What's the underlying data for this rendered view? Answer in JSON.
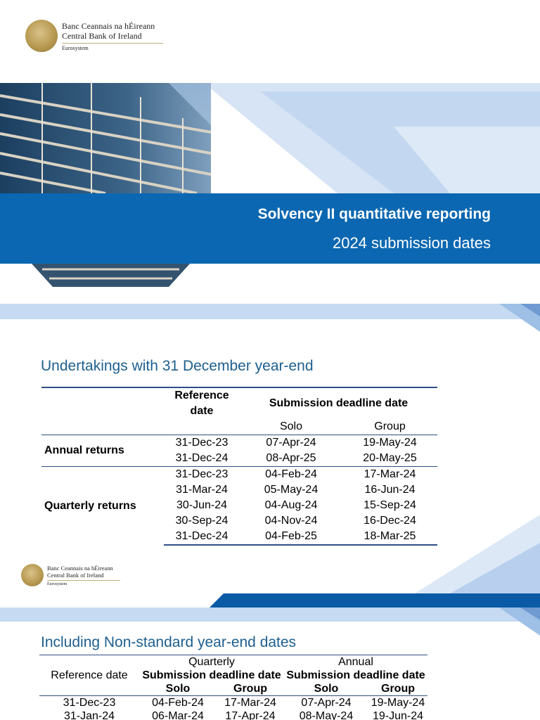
{
  "branding": {
    "name_irish": "Banc Ceannais na hÉireann",
    "name_english": "Central Bank of Ireland",
    "eurosystem": "Eurosystem"
  },
  "title_slide": {
    "title": "Solvency II quantitative reporting",
    "subtitle": "2024 submission dates"
  },
  "standard_section": {
    "heading": "Undertakings with 31 December year-end",
    "col_reference": "Reference date",
    "col_deadline": "Submission deadline date",
    "col_solo": "Solo",
    "col_group": "Group",
    "annual_label": "Annual returns",
    "quarterly_label": "Quarterly returns",
    "annual_rows": [
      {
        "ref": "31-Dec-23",
        "solo": "07-Apr-24",
        "group": "19-May-24"
      },
      {
        "ref": "31-Dec-24",
        "solo": "08-Apr-25",
        "group": "20-May-25"
      }
    ],
    "quarterly_rows": [
      {
        "ref": "31-Dec-23",
        "solo": "04-Feb-24",
        "group": "17-Mar-24"
      },
      {
        "ref": "31-Mar-24",
        "solo": "05-May-24",
        "group": "16-Jun-24"
      },
      {
        "ref": "30-Jun-24",
        "solo": "04-Aug-24",
        "group": "15-Sep-24"
      },
      {
        "ref": "30-Sep-24",
        "solo": "04-Nov-24",
        "group": "16-Dec-24"
      },
      {
        "ref": "31-Dec-24",
        "solo": "04-Feb-25",
        "group": "18-Mar-25"
      }
    ]
  },
  "nonstandard_section": {
    "heading": "Including Non-standard year-end dates",
    "col_reference": "Reference date",
    "quarterly": "Quarterly",
    "annual": "Annual",
    "deadline": "Submission deadline date",
    "solo": "Solo",
    "group": "Group",
    "rows": [
      {
        "ref": "31-Dec-23",
        "q_solo": "04-Feb-24",
        "q_group": "17-Mar-24",
        "a_solo": "07-Apr-24",
        "a_group": "19-May-24"
      },
      {
        "ref": "31-Jan-24",
        "q_solo": "06-Mar-24",
        "q_group": "17-Apr-24",
        "a_solo": "08-May-24",
        "a_group": "19-Jun-24"
      }
    ]
  },
  "colors": {
    "brand_blue": "#0b67b1",
    "heading_blue": "#1d5f8f",
    "pale_blue": "#c6daf2",
    "rule_navy": "#2f4e86",
    "seal_gold": "#b89a52"
  }
}
